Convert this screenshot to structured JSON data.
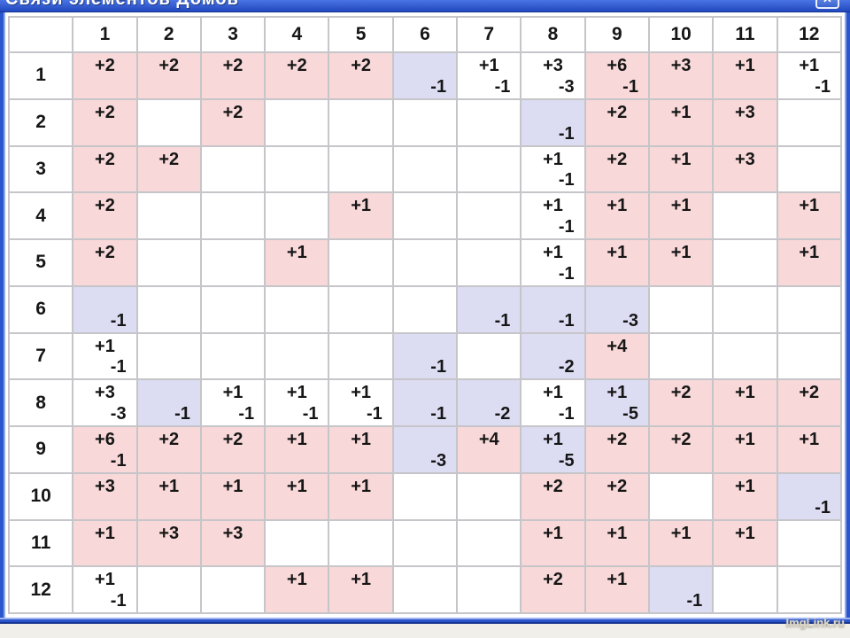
{
  "window": {
    "title": "Связи элементов Домов",
    "close_glyph": "✕"
  },
  "watermark": "ImgLink.ru",
  "colors": {
    "titlebar_blue": "#2f57cc",
    "border_blue": "#2b55cc",
    "positive_bg": "#f8d8d8",
    "negative_bg": "#dcdcf2",
    "grid_gray": "#c6c5c9"
  },
  "table": {
    "col_headers": [
      "1",
      "2",
      "3",
      "4",
      "5",
      "6",
      "7",
      "8",
      "9",
      "10",
      "11",
      "12"
    ],
    "rows": [
      {
        "label": "1",
        "cells": [
          {
            "p": "+2",
            "n": "",
            "c": "p"
          },
          {
            "p": "+2",
            "n": "",
            "c": "p"
          },
          {
            "p": "+2",
            "n": "",
            "c": "p"
          },
          {
            "p": "+2",
            "n": "",
            "c": "p"
          },
          {
            "p": "+2",
            "n": "",
            "c": "p"
          },
          {
            "p": "",
            "n": "-1",
            "c": "n"
          },
          {
            "p": "+1",
            "n": "-1",
            "c": "w"
          },
          {
            "p": "+3",
            "n": "-3",
            "c": "w"
          },
          {
            "p": "+6",
            "n": "-1",
            "c": "p"
          },
          {
            "p": "+3",
            "n": "",
            "c": "p"
          },
          {
            "p": "+1",
            "n": "",
            "c": "p"
          },
          {
            "p": "+1",
            "n": "-1",
            "c": "w"
          }
        ]
      },
      {
        "label": "2",
        "cells": [
          {
            "p": "+2",
            "n": "",
            "c": "p"
          },
          {
            "p": "",
            "n": "",
            "c": "w"
          },
          {
            "p": "+2",
            "n": "",
            "c": "p"
          },
          {
            "p": "",
            "n": "",
            "c": "w"
          },
          {
            "p": "",
            "n": "",
            "c": "w"
          },
          {
            "p": "",
            "n": "",
            "c": "w"
          },
          {
            "p": "",
            "n": "",
            "c": "w"
          },
          {
            "p": "",
            "n": "-1",
            "c": "n"
          },
          {
            "p": "+2",
            "n": "",
            "c": "p"
          },
          {
            "p": "+1",
            "n": "",
            "c": "p"
          },
          {
            "p": "+3",
            "n": "",
            "c": "p"
          },
          {
            "p": "",
            "n": "",
            "c": "w"
          }
        ]
      },
      {
        "label": "3",
        "cells": [
          {
            "p": "+2",
            "n": "",
            "c": "p"
          },
          {
            "p": "+2",
            "n": "",
            "c": "p"
          },
          {
            "p": "",
            "n": "",
            "c": "w"
          },
          {
            "p": "",
            "n": "",
            "c": "w"
          },
          {
            "p": "",
            "n": "",
            "c": "w"
          },
          {
            "p": "",
            "n": "",
            "c": "w"
          },
          {
            "p": "",
            "n": "",
            "c": "w"
          },
          {
            "p": "+1",
            "n": "-1",
            "c": "w"
          },
          {
            "p": "+2",
            "n": "",
            "c": "p"
          },
          {
            "p": "+1",
            "n": "",
            "c": "p"
          },
          {
            "p": "+3",
            "n": "",
            "c": "p"
          },
          {
            "p": "",
            "n": "",
            "c": "w"
          }
        ]
      },
      {
        "label": "4",
        "cells": [
          {
            "p": "+2",
            "n": "",
            "c": "p"
          },
          {
            "p": "",
            "n": "",
            "c": "w"
          },
          {
            "p": "",
            "n": "",
            "c": "w"
          },
          {
            "p": "",
            "n": "",
            "c": "w"
          },
          {
            "p": "+1",
            "n": "",
            "c": "p"
          },
          {
            "p": "",
            "n": "",
            "c": "w"
          },
          {
            "p": "",
            "n": "",
            "c": "w"
          },
          {
            "p": "+1",
            "n": "-1",
            "c": "w"
          },
          {
            "p": "+1",
            "n": "",
            "c": "p"
          },
          {
            "p": "+1",
            "n": "",
            "c": "p"
          },
          {
            "p": "",
            "n": "",
            "c": "w"
          },
          {
            "p": "+1",
            "n": "",
            "c": "p"
          }
        ]
      },
      {
        "label": "5",
        "cells": [
          {
            "p": "+2",
            "n": "",
            "c": "p"
          },
          {
            "p": "",
            "n": "",
            "c": "w"
          },
          {
            "p": "",
            "n": "",
            "c": "w"
          },
          {
            "p": "+1",
            "n": "",
            "c": "p"
          },
          {
            "p": "",
            "n": "",
            "c": "w"
          },
          {
            "p": "",
            "n": "",
            "c": "w"
          },
          {
            "p": "",
            "n": "",
            "c": "w"
          },
          {
            "p": "+1",
            "n": "-1",
            "c": "w"
          },
          {
            "p": "+1",
            "n": "",
            "c": "p"
          },
          {
            "p": "+1",
            "n": "",
            "c": "p"
          },
          {
            "p": "",
            "n": "",
            "c": "w"
          },
          {
            "p": "+1",
            "n": "",
            "c": "p"
          }
        ]
      },
      {
        "label": "6",
        "cells": [
          {
            "p": "",
            "n": "-1",
            "c": "n"
          },
          {
            "p": "",
            "n": "",
            "c": "w"
          },
          {
            "p": "",
            "n": "",
            "c": "w"
          },
          {
            "p": "",
            "n": "",
            "c": "w"
          },
          {
            "p": "",
            "n": "",
            "c": "w"
          },
          {
            "p": "",
            "n": "",
            "c": "w"
          },
          {
            "p": "",
            "n": "-1",
            "c": "n"
          },
          {
            "p": "",
            "n": "-1",
            "c": "n"
          },
          {
            "p": "",
            "n": "-3",
            "c": "n"
          },
          {
            "p": "",
            "n": "",
            "c": "w"
          },
          {
            "p": "",
            "n": "",
            "c": "w"
          },
          {
            "p": "",
            "n": "",
            "c": "w"
          }
        ]
      },
      {
        "label": "7",
        "cells": [
          {
            "p": "+1",
            "n": "-1",
            "c": "w"
          },
          {
            "p": "",
            "n": "",
            "c": "w"
          },
          {
            "p": "",
            "n": "",
            "c": "w"
          },
          {
            "p": "",
            "n": "",
            "c": "w"
          },
          {
            "p": "",
            "n": "",
            "c": "w"
          },
          {
            "p": "",
            "n": "-1",
            "c": "n"
          },
          {
            "p": "",
            "n": "",
            "c": "w"
          },
          {
            "p": "",
            "n": "-2",
            "c": "n"
          },
          {
            "p": "+4",
            "n": "",
            "c": "p"
          },
          {
            "p": "",
            "n": "",
            "c": "w"
          },
          {
            "p": "",
            "n": "",
            "c": "w"
          },
          {
            "p": "",
            "n": "",
            "c": "w"
          }
        ]
      },
      {
        "label": "8",
        "cells": [
          {
            "p": "+3",
            "n": "-3",
            "c": "w"
          },
          {
            "p": "",
            "n": "-1",
            "c": "n"
          },
          {
            "p": "+1",
            "n": "-1",
            "c": "w"
          },
          {
            "p": "+1",
            "n": "-1",
            "c": "w"
          },
          {
            "p": "+1",
            "n": "-1",
            "c": "w"
          },
          {
            "p": "",
            "n": "-1",
            "c": "n"
          },
          {
            "p": "",
            "n": "-2",
            "c": "n"
          },
          {
            "p": "+1",
            "n": "-1",
            "c": "w"
          },
          {
            "p": "+1",
            "n": "-5",
            "c": "n"
          },
          {
            "p": "+2",
            "n": "",
            "c": "p"
          },
          {
            "p": "+1",
            "n": "",
            "c": "p"
          },
          {
            "p": "+2",
            "n": "",
            "c": "p"
          }
        ]
      },
      {
        "label": "9",
        "cells": [
          {
            "p": "+6",
            "n": "-1",
            "c": "p"
          },
          {
            "p": "+2",
            "n": "",
            "c": "p"
          },
          {
            "p": "+2",
            "n": "",
            "c": "p"
          },
          {
            "p": "+1",
            "n": "",
            "c": "p"
          },
          {
            "p": "+1",
            "n": "",
            "c": "p"
          },
          {
            "p": "",
            "n": "-3",
            "c": "n"
          },
          {
            "p": "+4",
            "n": "",
            "c": "p"
          },
          {
            "p": "+1",
            "n": "-5",
            "c": "n"
          },
          {
            "p": "+2",
            "n": "",
            "c": "p"
          },
          {
            "p": "+2",
            "n": "",
            "c": "p"
          },
          {
            "p": "+1",
            "n": "",
            "c": "p"
          },
          {
            "p": "+1",
            "n": "",
            "c": "p"
          }
        ]
      },
      {
        "label": "10",
        "cells": [
          {
            "p": "+3",
            "n": "",
            "c": "p"
          },
          {
            "p": "+1",
            "n": "",
            "c": "p"
          },
          {
            "p": "+1",
            "n": "",
            "c": "p"
          },
          {
            "p": "+1",
            "n": "",
            "c": "p"
          },
          {
            "p": "+1",
            "n": "",
            "c": "p"
          },
          {
            "p": "",
            "n": "",
            "c": "w"
          },
          {
            "p": "",
            "n": "",
            "c": "w"
          },
          {
            "p": "+2",
            "n": "",
            "c": "p"
          },
          {
            "p": "+2",
            "n": "",
            "c": "p"
          },
          {
            "p": "",
            "n": "",
            "c": "w"
          },
          {
            "p": "+1",
            "n": "",
            "c": "p"
          },
          {
            "p": "",
            "n": "-1",
            "c": "n"
          }
        ]
      },
      {
        "label": "11",
        "cells": [
          {
            "p": "+1",
            "n": "",
            "c": "p"
          },
          {
            "p": "+3",
            "n": "",
            "c": "p"
          },
          {
            "p": "+3",
            "n": "",
            "c": "p"
          },
          {
            "p": "",
            "n": "",
            "c": "w"
          },
          {
            "p": "",
            "n": "",
            "c": "w"
          },
          {
            "p": "",
            "n": "",
            "c": "w"
          },
          {
            "p": "",
            "n": "",
            "c": "w"
          },
          {
            "p": "+1",
            "n": "",
            "c": "p"
          },
          {
            "p": "+1",
            "n": "",
            "c": "p"
          },
          {
            "p": "+1",
            "n": "",
            "c": "p"
          },
          {
            "p": "+1",
            "n": "",
            "c": "p"
          },
          {
            "p": "",
            "n": "",
            "c": "w"
          }
        ]
      },
      {
        "label": "12",
        "cells": [
          {
            "p": "+1",
            "n": "-1",
            "c": "w"
          },
          {
            "p": "",
            "n": "",
            "c": "w"
          },
          {
            "p": "",
            "n": "",
            "c": "w"
          },
          {
            "p": "+1",
            "n": "",
            "c": "p"
          },
          {
            "p": "+1",
            "n": "",
            "c": "p"
          },
          {
            "p": "",
            "n": "",
            "c": "w"
          },
          {
            "p": "",
            "n": "",
            "c": "w"
          },
          {
            "p": "+2",
            "n": "",
            "c": "p"
          },
          {
            "p": "+1",
            "n": "",
            "c": "p"
          },
          {
            "p": "",
            "n": "-1",
            "c": "n"
          },
          {
            "p": "",
            "n": "",
            "c": "w"
          },
          {
            "p": "",
            "n": "",
            "c": "w"
          }
        ]
      }
    ]
  }
}
